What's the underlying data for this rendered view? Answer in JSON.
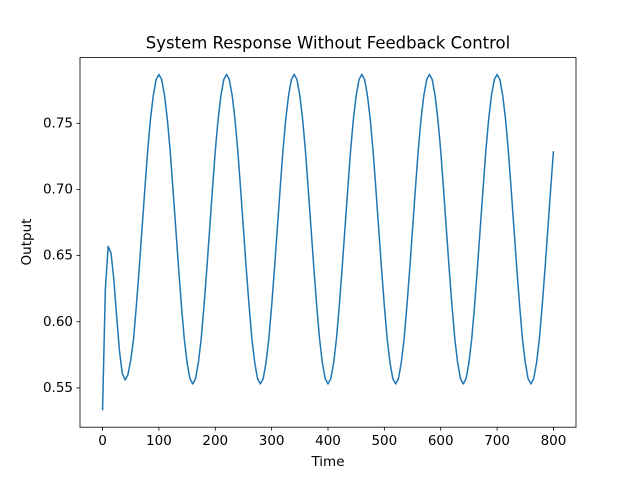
{
  "chart_data": {
    "type": "line",
    "title": "System Response Without Feedback Control",
    "xlabel": "Time",
    "ylabel": "Output",
    "x": [
      0,
      5,
      10,
      15,
      20,
      25,
      30,
      35,
      40,
      45,
      50,
      55,
      60,
      65,
      70,
      75,
      80,
      85,
      90,
      95,
      100,
      105,
      110,
      115,
      120,
      125,
      130,
      135,
      140,
      145,
      150,
      155,
      160,
      165,
      170,
      175,
      180,
      185,
      190,
      195,
      200,
      205,
      210,
      215,
      220,
      225,
      230,
      235,
      240,
      245,
      250,
      255,
      260,
      265,
      270,
      275,
      280,
      285,
      290,
      295,
      300,
      305,
      310,
      315,
      320,
      325,
      330,
      335,
      340,
      345,
      350,
      355,
      360,
      365,
      370,
      375,
      380,
      385,
      390,
      395,
      400,
      405,
      410,
      415,
      420,
      425,
      430,
      435,
      440,
      445,
      450,
      455,
      460,
      465,
      470,
      475,
      480,
      485,
      490,
      495,
      500,
      505,
      510,
      515,
      520,
      525,
      530,
      535,
      540,
      545,
      550,
      555,
      560,
      565,
      570,
      575,
      580,
      585,
      590,
      595,
      600,
      605,
      610,
      615,
      620,
      625,
      630,
      635,
      640,
      645,
      650,
      655,
      660,
      665,
      670,
      675,
      680,
      685,
      690,
      695,
      700,
      705,
      710,
      715,
      720,
      725,
      730,
      735,
      740,
      745,
      750,
      755,
      760,
      765,
      770,
      775,
      780,
      785,
      790,
      795,
      800
    ],
    "series": [
      {
        "name": "Output",
        "color": "#1f77b4",
        "values": [
          0.533,
          0.625,
          0.657,
          0.652,
          0.632,
          0.604,
          0.578,
          0.561,
          0.556,
          0.56,
          0.571,
          0.587,
          0.612,
          0.64,
          0.67,
          0.7,
          0.729,
          0.753,
          0.771,
          0.783,
          0.787,
          0.783,
          0.771,
          0.753,
          0.729,
          0.7,
          0.67,
          0.64,
          0.612,
          0.587,
          0.569,
          0.557,
          0.553,
          0.557,
          0.569,
          0.587,
          0.612,
          0.64,
          0.67,
          0.7,
          0.729,
          0.753,
          0.771,
          0.783,
          0.787,
          0.783,
          0.771,
          0.753,
          0.729,
          0.7,
          0.67,
          0.64,
          0.612,
          0.587,
          0.569,
          0.557,
          0.553,
          0.557,
          0.569,
          0.587,
          0.612,
          0.64,
          0.67,
          0.7,
          0.729,
          0.753,
          0.771,
          0.783,
          0.787,
          0.783,
          0.771,
          0.753,
          0.729,
          0.7,
          0.67,
          0.64,
          0.612,
          0.587,
          0.569,
          0.557,
          0.553,
          0.557,
          0.569,
          0.587,
          0.612,
          0.64,
          0.67,
          0.7,
          0.729,
          0.753,
          0.771,
          0.783,
          0.787,
          0.783,
          0.771,
          0.753,
          0.729,
          0.7,
          0.67,
          0.64,
          0.612,
          0.587,
          0.569,
          0.557,
          0.553,
          0.557,
          0.569,
          0.587,
          0.612,
          0.64,
          0.67,
          0.7,
          0.729,
          0.753,
          0.771,
          0.783,
          0.787,
          0.783,
          0.771,
          0.753,
          0.729,
          0.7,
          0.67,
          0.64,
          0.612,
          0.587,
          0.569,
          0.557,
          0.553,
          0.557,
          0.569,
          0.587,
          0.612,
          0.64,
          0.67,
          0.7,
          0.729,
          0.753,
          0.771,
          0.783,
          0.787,
          0.783,
          0.771,
          0.753,
          0.729,
          0.7,
          0.67,
          0.64,
          0.612,
          0.587,
          0.569,
          0.557,
          0.553,
          0.557,
          0.569,
          0.587,
          0.612,
          0.64,
          0.67,
          0.7,
          0.729
        ]
      }
    ],
    "xlim": [
      -40,
      840
    ],
    "xticks": [
      0,
      100,
      200,
      300,
      400,
      500,
      600,
      700,
      800
    ],
    "ylim": [
      0.5203,
      0.7997
    ],
    "yticks": [
      0.55,
      {
        "value": 0.6,
        "label": "0.60"
      },
      0.65,
      {
        "value": 0.7,
        "label": "0.70"
      },
      0.75
    ],
    "grid": false
  }
}
